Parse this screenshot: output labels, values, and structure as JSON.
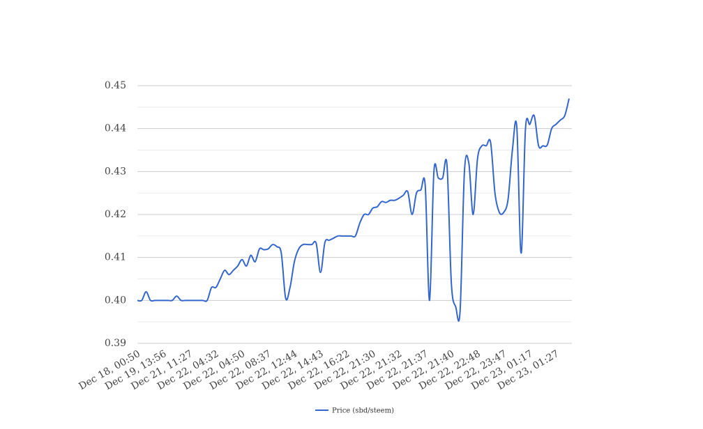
{
  "chart_data": {
    "type": "line",
    "categories": [
      "Dec 18, 00:50",
      null,
      null,
      null,
      null,
      null,
      "Dec 19, 13:56",
      null,
      null,
      null,
      null,
      null,
      "Dec 21, 11:27",
      null,
      null,
      null,
      null,
      null,
      "Dec 22, 04:32",
      null,
      null,
      null,
      null,
      null,
      "Dec 22, 04:50",
      null,
      null,
      null,
      null,
      null,
      "Dec 22, 08:37",
      null,
      null,
      null,
      null,
      null,
      "Dec 22, 12:44",
      null,
      null,
      null,
      null,
      null,
      "Dec 22, 14:43",
      null,
      null,
      null,
      null,
      null,
      "Dec 22, 16:22",
      null,
      null,
      null,
      null,
      null,
      "Dec 22, 21:30",
      null,
      null,
      null,
      null,
      null,
      "Dec 22, 21:32",
      null,
      null,
      null,
      null,
      null,
      "Dec 22, 21:37",
      null,
      null,
      null,
      null,
      null,
      "Dec 22, 21:40",
      null,
      null,
      null,
      null,
      null,
      "Dec 22, 22:48",
      null,
      null,
      null,
      null,
      null,
      "Dec 22, 23:47",
      null,
      null,
      null,
      null,
      null,
      "Dec 23, 01:17",
      null,
      null,
      null,
      null,
      null,
      "Dec 23, 01:27",
      null,
      null,
      null
    ],
    "series": [
      {
        "name": "Price (sbd/steem)",
        "color": "#3366cc",
        "values": [
          0.4,
          0.4,
          0.402,
          0.4,
          0.4,
          0.4,
          0.4,
          0.4,
          0.4,
          0.401,
          0.4,
          0.4,
          0.4,
          0.4,
          0.4,
          0.4,
          0.4,
          0.403,
          0.403,
          0.405,
          0.407,
          0.406,
          0.407,
          0.408,
          0.4095,
          0.408,
          0.4105,
          0.409,
          0.412,
          0.4118,
          0.412,
          0.413,
          0.4125,
          0.411,
          0.4005,
          0.403,
          0.409,
          0.412,
          0.413,
          0.413,
          0.413,
          0.4133,
          0.4065,
          0.4135,
          0.414,
          0.4145,
          0.415,
          0.415,
          0.415,
          0.415,
          0.415,
          0.418,
          0.42,
          0.42,
          0.4215,
          0.4218,
          0.423,
          0.4228,
          0.4233,
          0.4233,
          0.4238,
          0.4245,
          0.4253,
          0.42,
          0.425,
          0.4257,
          0.4268,
          0.4,
          0.43,
          0.4285,
          0.4285,
          0.4315,
          0.404,
          0.3985,
          0.3975,
          0.43,
          0.432,
          0.42,
          0.433,
          0.436,
          0.436,
          0.4368,
          0.425,
          0.4205,
          0.4205,
          0.4235,
          0.435,
          0.4405,
          0.411,
          0.44,
          0.441,
          0.443,
          0.436,
          0.436,
          0.4362,
          0.44,
          0.441,
          0.442,
          0.443,
          0.447
        ]
      }
    ],
    "ylim": [
      0.39,
      0.45
    ],
    "yticks": [
      0.39,
      {
        "value": 0.4,
        "label": "0.40"
      },
      0.41,
      0.42,
      0.43,
      0.44,
      0.45
    ],
    "grid": true,
    "minor_grid": true,
    "smooth": true,
    "legend": "bottom"
  }
}
